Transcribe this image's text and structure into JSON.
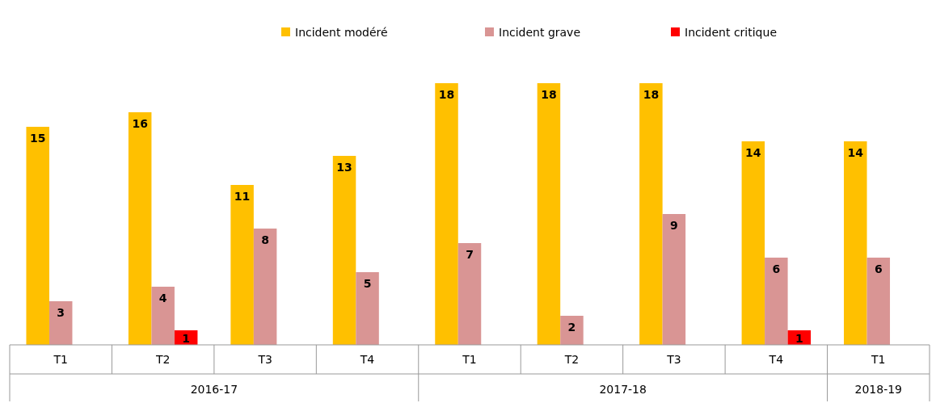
{
  "chart_data": {
    "type": "bar",
    "categories": [
      "T1",
      "T2",
      "T3",
      "T4",
      "T1",
      "T2",
      "T3",
      "T4",
      "T1"
    ],
    "series": [
      {
        "name": "Incident modéré",
        "color": "#ffc000",
        "values": [
          15,
          16,
          11,
          13,
          18,
          18,
          18,
          14,
          14
        ]
      },
      {
        "name": "Incident grave",
        "color": "#d99594",
        "values": [
          3,
          4,
          8,
          5,
          7,
          2,
          9,
          6,
          6
        ]
      },
      {
        "name": "Incident critique",
        "color": "#ff0000",
        "values": [
          null,
          1,
          null,
          null,
          null,
          null,
          null,
          1,
          null
        ]
      }
    ],
    "annotations": [
      "2016-17",
      "2017-18",
      "2018-19"
    ],
    "data_labels": true,
    "legend": "top",
    "grid": false
  }
}
